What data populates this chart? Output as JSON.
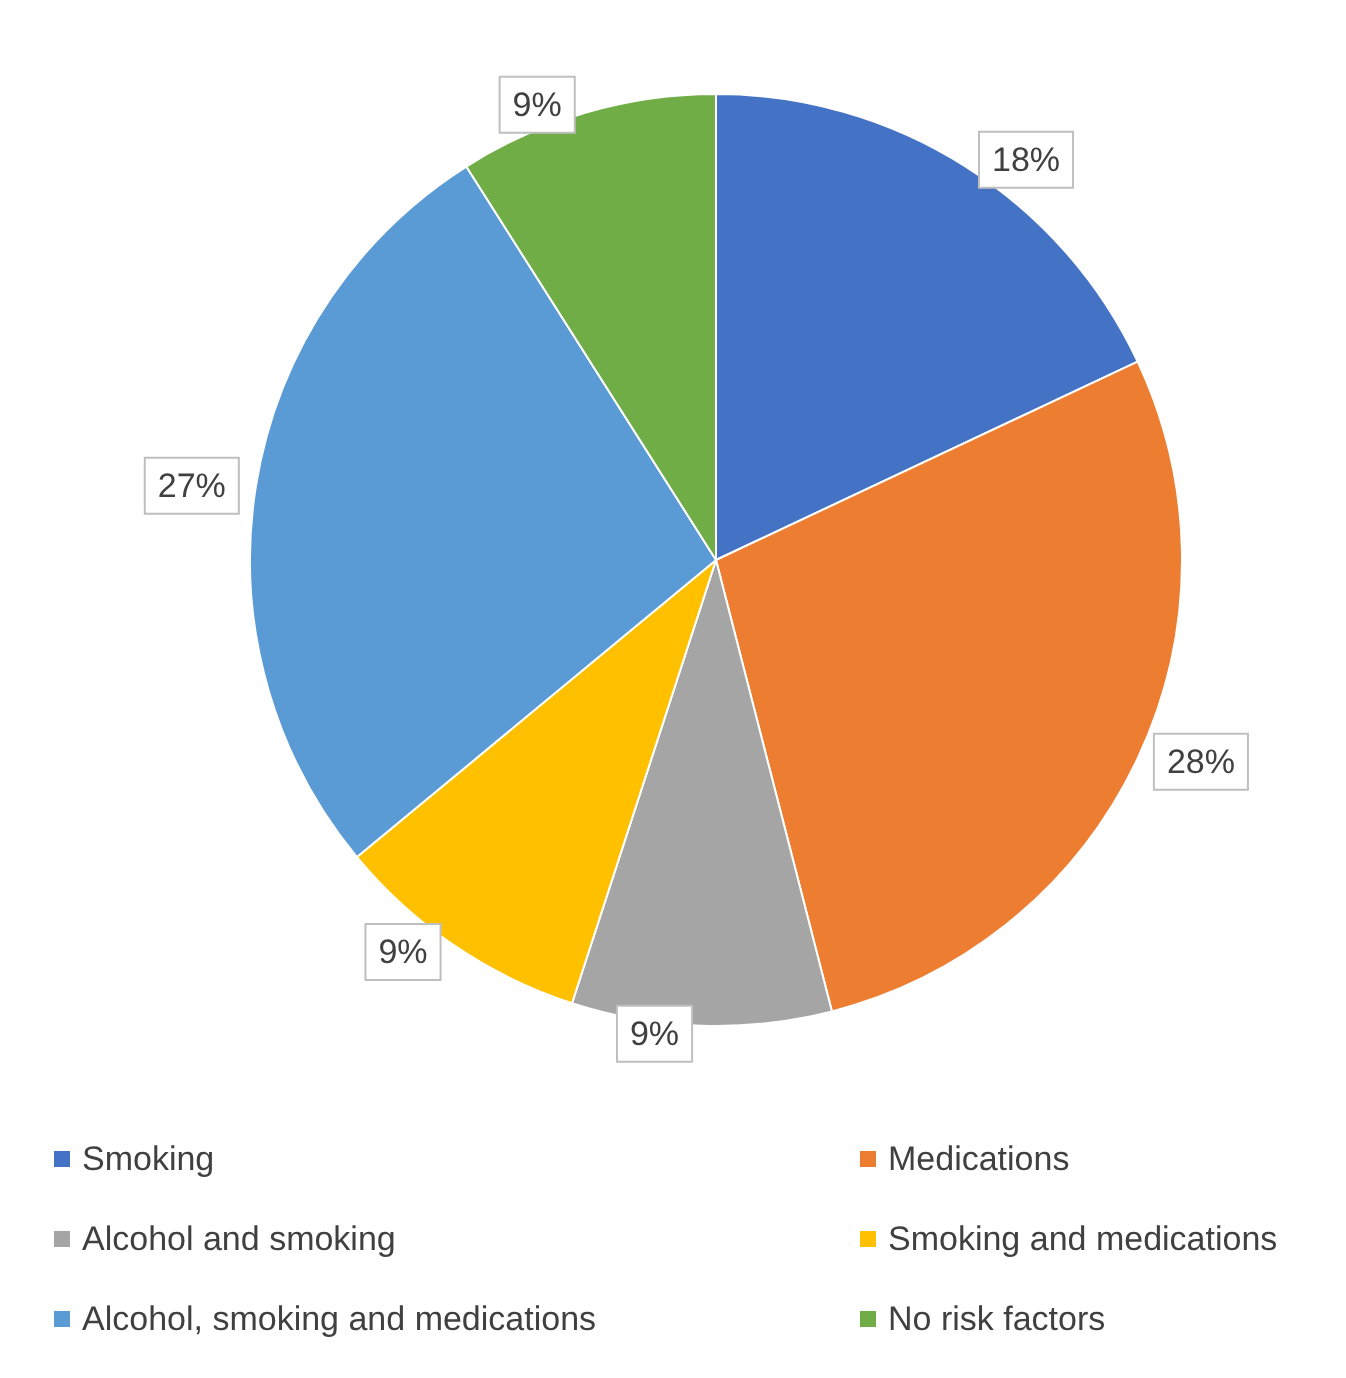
{
  "chart_data": {
    "type": "pie",
    "categories": [
      "Smoking",
      "Medications",
      "Alcohol and smoking",
      "Smoking and medications",
      "Alcohol, smoking and medications",
      "No risk factors"
    ],
    "values": [
      18,
      28,
      9,
      9,
      27,
      9
    ],
    "colors": [
      "#4472c4",
      "#ed7d31",
      "#a5a5a5",
      "#ffc000",
      "#5b9bd5",
      "#70ad47"
    ],
    "value_labels": [
      "18%",
      "28%",
      "9%",
      "9%",
      "27%",
      "9%"
    ],
    "legend": "bottom"
  }
}
